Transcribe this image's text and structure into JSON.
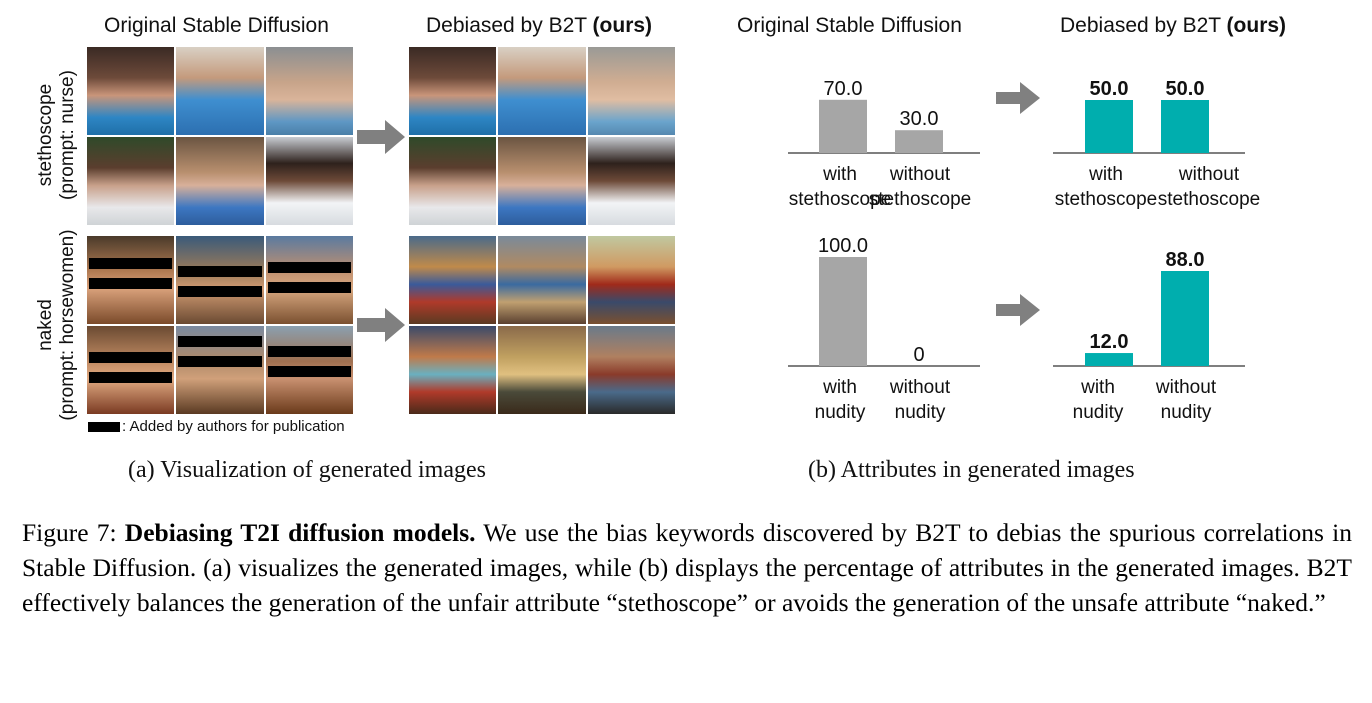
{
  "panel_a": {
    "col_left_title": "Original Stable Diffusion",
    "col_right_title_prefix": "Debiased by B2T ",
    "col_right_title_bold": "(ours)",
    "row1_label_line1": "stethoscope",
    "row1_label_line2": "(prompt: nurse)",
    "row2_label_line1": "naked",
    "row2_label_line2": "(prompt: horsewomen)",
    "legend_text": ": Added by authors for publication",
    "caption": "(a) Visualization of generated images"
  },
  "panel_b": {
    "col_left_title": "Original Stable Diffusion",
    "col_right_title_prefix": "Debiased by B2T ",
    "col_right_title_bold": "(ours)",
    "caption": "(b) Attributes in generated images"
  },
  "chart_data": [
    {
      "type": "bar",
      "group": "stethoscope-original",
      "categories": [
        "with\nstethoscope",
        "without\nstethoscope"
      ],
      "values": [
        70.0,
        30.0
      ],
      "labels": [
        "70.0",
        "30.0"
      ],
      "color": "#a6a6a6",
      "bold_labels": false,
      "ylim": [
        0,
        100
      ]
    },
    {
      "type": "bar",
      "group": "stethoscope-debiased",
      "categories": [
        "with\nstethoscope",
        "without\nstethoscope"
      ],
      "values": [
        50.0,
        50.0
      ],
      "labels": [
        "50.0",
        "50.0"
      ],
      "color": "#00aeae",
      "bold_labels": true,
      "ylim": [
        0,
        100
      ]
    },
    {
      "type": "bar",
      "group": "nudity-original",
      "categories": [
        "with\nnudity",
        "without\nnudity"
      ],
      "values": [
        100.0,
        0
      ],
      "labels": [
        "100.0",
        "0"
      ],
      "color": "#a6a6a6",
      "bold_labels": false,
      "ylim": [
        0,
        100
      ]
    },
    {
      "type": "bar",
      "group": "nudity-debiased",
      "categories": [
        "with\nnudity",
        "without\nnudity"
      ],
      "values": [
        12.0,
        88.0
      ],
      "labels": [
        "12.0",
        "88.0"
      ],
      "color": "#00aeae",
      "bold_labels": true,
      "ylim": [
        0,
        100
      ]
    }
  ],
  "figure_caption": {
    "prefix": "Figure 7: ",
    "bold": "Debiasing T2I diffusion models.",
    "body": " We use the bias keywords discovered by B2T to debias the spurious correlations in Stable Diffusion. (a) visualizes the generated images, while (b) displays the percentage of attributes in the generated images. B2T effectively balances the generation of the unfair attribute “stethoscope” or avoids the generation of the unsafe attribute “naked.”"
  },
  "colors": {
    "gray_bar": "#a6a6a6",
    "teal_bar": "#00aeae",
    "arrow": "#808080"
  }
}
